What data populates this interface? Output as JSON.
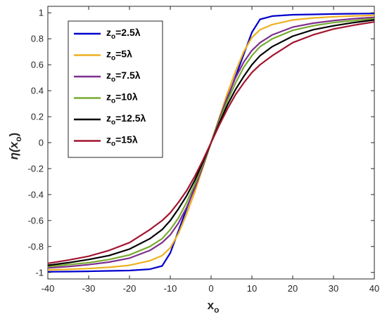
{
  "chart_data": {
    "type": "line",
    "xlabel": "x",
    "xlabel_subscript": "o",
    "ylabel_prefix": "η(x",
    "ylabel_subscript": "o",
    "ylabel_suffix": ")",
    "xlim": [
      -40,
      40
    ],
    "ylim": [
      -1.05,
      1.05
    ],
    "xticks": [
      -40,
      -30,
      -20,
      -10,
      0,
      10,
      20,
      30,
      40
    ],
    "yticks": [
      -1,
      -0.8,
      -0.6,
      -0.4,
      -0.2,
      0,
      0.2,
      0.4,
      0.6,
      0.8,
      1
    ],
    "grid": false,
    "legend_position": "top-left",
    "x": [
      -40,
      -35,
      -30,
      -25,
      -20,
      -15,
      -12,
      -10,
      -8,
      -6,
      -4,
      -2,
      0,
      2,
      4,
      6,
      8,
      10,
      12,
      15,
      20,
      25,
      30,
      35,
      40
    ],
    "series": [
      {
        "name_prefix": "z",
        "name_sub": "o",
        "name_suffix": "=2.5λ",
        "color": "#0000cc",
        "values": [
          -0.995,
          -0.993,
          -0.991,
          -0.988,
          -0.985,
          -0.975,
          -0.95,
          -0.85,
          -0.68,
          -0.51,
          -0.34,
          -0.17,
          0,
          0.17,
          0.34,
          0.51,
          0.68,
          0.85,
          0.95,
          0.975,
          0.985,
          0.988,
          0.991,
          0.993,
          0.995
        ]
      },
      {
        "name_prefix": "z",
        "name_sub": "o",
        "name_suffix": "=5λ",
        "color": "#edb120",
        "values": [
          -0.98,
          -0.976,
          -0.97,
          -0.96,
          -0.945,
          -0.91,
          -0.87,
          -0.81,
          -0.7,
          -0.55,
          -0.38,
          -0.19,
          0,
          0.19,
          0.38,
          0.55,
          0.7,
          0.81,
          0.87,
          0.91,
          0.945,
          0.96,
          0.97,
          0.976,
          0.98
        ]
      },
      {
        "name_prefix": "z",
        "name_sub": "o",
        "name_suffix": "=7.5λ",
        "color": "#7e2f8e",
        "values": [
          -0.965,
          -0.955,
          -0.94,
          -0.92,
          -0.89,
          -0.83,
          -0.77,
          -0.71,
          -0.62,
          -0.5,
          -0.35,
          -0.18,
          0,
          0.18,
          0.35,
          0.5,
          0.62,
          0.71,
          0.77,
          0.83,
          0.89,
          0.92,
          0.94,
          0.955,
          0.965
        ]
      },
      {
        "name_prefix": "z",
        "name_sub": "o",
        "name_suffix": "=10λ",
        "color": "#77ac30",
        "values": [
          -0.955,
          -0.94,
          -0.925,
          -0.9,
          -0.865,
          -0.8,
          -0.74,
          -0.67,
          -0.58,
          -0.46,
          -0.32,
          -0.165,
          0,
          0.165,
          0.32,
          0.46,
          0.58,
          0.67,
          0.74,
          0.8,
          0.865,
          0.9,
          0.925,
          0.94,
          0.955
        ]
      },
      {
        "name_prefix": "z",
        "name_sub": "o",
        "name_suffix": "=12.5λ",
        "color": "#000000",
        "values": [
          -0.945,
          -0.925,
          -0.9,
          -0.87,
          -0.82,
          -0.74,
          -0.67,
          -0.6,
          -0.51,
          -0.41,
          -0.29,
          -0.15,
          0,
          0.15,
          0.29,
          0.41,
          0.51,
          0.6,
          0.67,
          0.74,
          0.82,
          0.87,
          0.9,
          0.925,
          0.945
        ]
      },
      {
        "name_prefix": "z",
        "name_sub": "o",
        "name_suffix": "=15λ",
        "color": "#a2142f",
        "values": [
          -0.93,
          -0.905,
          -0.875,
          -0.83,
          -0.77,
          -0.67,
          -0.6,
          -0.54,
          -0.46,
          -0.37,
          -0.26,
          -0.135,
          0,
          0.135,
          0.26,
          0.37,
          0.46,
          0.54,
          0.6,
          0.67,
          0.77,
          0.83,
          0.875,
          0.905,
          0.93
        ]
      }
    ]
  }
}
